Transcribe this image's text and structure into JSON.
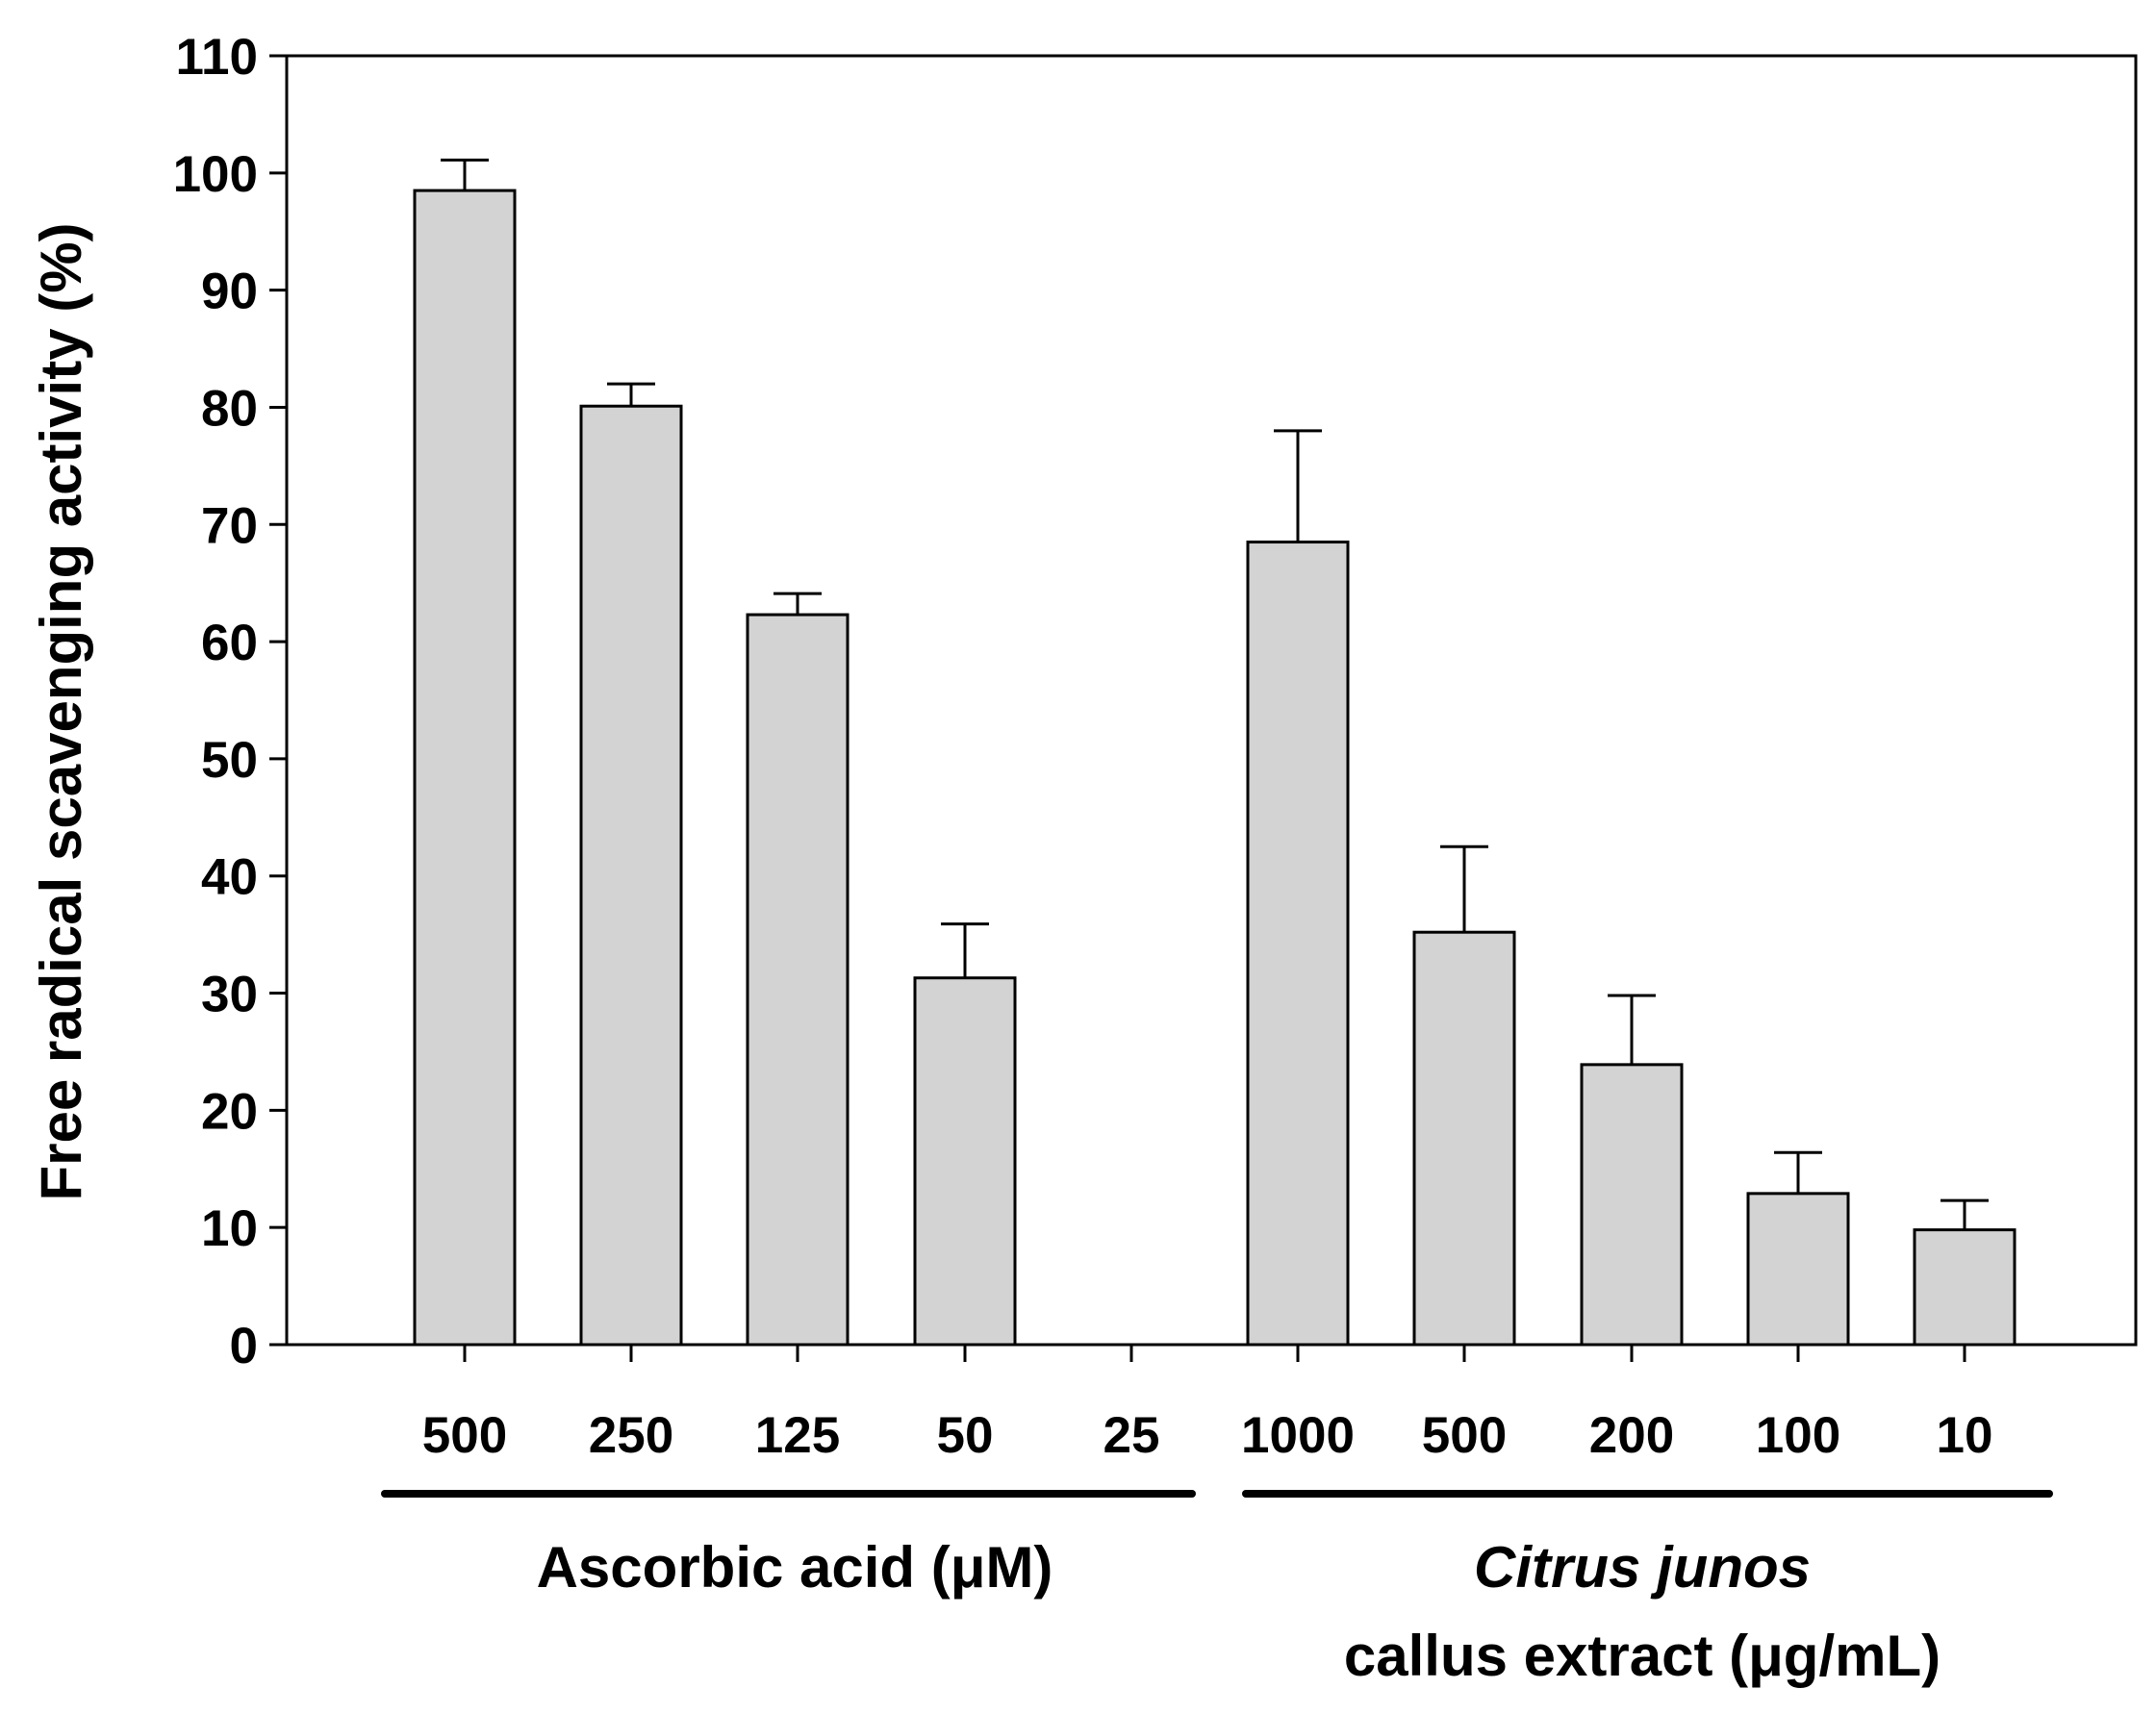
{
  "chart_data": {
    "type": "bar",
    "ylabel": "Free radical scavenging activity (%)",
    "ylim": [
      0,
      110
    ],
    "yticks": [
      0,
      10,
      20,
      30,
      40,
      50,
      60,
      70,
      80,
      90,
      100,
      110
    ],
    "bar_color": "#d3d3d3",
    "categories": [
      "500",
      "250",
      "125",
      "50",
      "25",
      "1000",
      "500",
      "200",
      "100",
      "10"
    ],
    "values": [
      98.5,
      80.1,
      62.3,
      31.3,
      0,
      68.5,
      35.2,
      23.9,
      12.9,
      9.8
    ],
    "errors": [
      2.6,
      1.9,
      1.8,
      4.6,
      0,
      9.5,
      7.3,
      5.9,
      3.5,
      2.5
    ],
    "groups": [
      {
        "label": "Ascorbic acid (μM)",
        "categories": [
          "500",
          "250",
          "125",
          "50",
          "25"
        ]
      },
      {
        "label_italic": "Citrus junos",
        "label": "callus extract (μg/mL)",
        "categories": [
          "1000",
          "500",
          "200",
          "100",
          "10"
        ]
      }
    ],
    "grid": false,
    "legend": "none"
  }
}
